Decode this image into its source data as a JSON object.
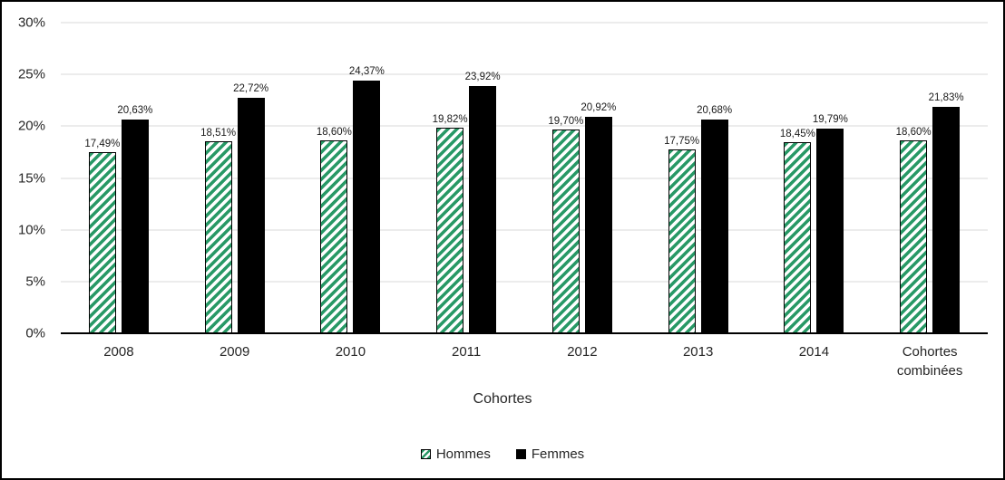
{
  "chart_data": {
    "type": "bar",
    "title": "",
    "categories": [
      "2008",
      "2009",
      "2010",
      "2011",
      "2012",
      "2013",
      "2014",
      "Cohortes combinées"
    ],
    "series": [
      {
        "name": "Hommes",
        "style": "hatched",
        "color": "#289966",
        "values": [
          17.49,
          18.51,
          18.6,
          19.82,
          19.7,
          17.75,
          18.45,
          18.6
        ],
        "labels": [
          "17,49%",
          "18,51%",
          "18,60%",
          "19,82%",
          "19,70%",
          "17,75%",
          "18,45%",
          "18,60%"
        ]
      },
      {
        "name": "Femmes",
        "style": "solid",
        "color": "#000000",
        "values": [
          20.63,
          22.72,
          24.37,
          23.92,
          20.92,
          20.68,
          19.79,
          21.83
        ],
        "labels": [
          "20,63%",
          "22,72%",
          "24,37%",
          "23,92%",
          "20,92%",
          "20,68%",
          "19,79%",
          "21,83%"
        ]
      }
    ],
    "xlabel": "Cohortes",
    "ylabel": "",
    "ylim": [
      0,
      30
    ],
    "ytick_step": 5,
    "ytick_labels": [
      "0%",
      "5%",
      "10%",
      "15%",
      "20%",
      "25%",
      "30%"
    ],
    "grid": true,
    "legend_position": "bottom"
  },
  "colors": {
    "hatch_green": "#289966",
    "bar_black": "#000000",
    "gridline": "#d9d9d9",
    "text": "#262626"
  }
}
